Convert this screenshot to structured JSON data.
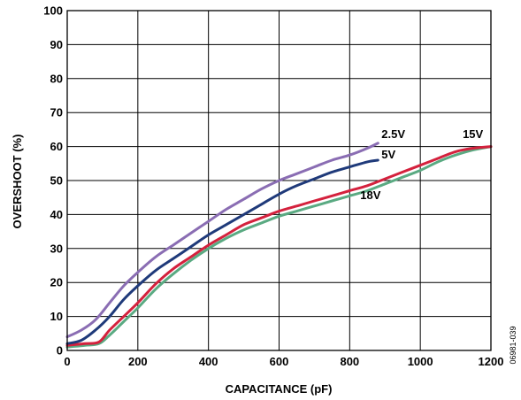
{
  "chart_data": {
    "type": "line",
    "xlabel": "CAPACITANCE (pF)",
    "ylabel": "OVERSHOOT (%)",
    "xlim": [
      0,
      1200
    ],
    "ylim": [
      0,
      100
    ],
    "x_ticks": [
      "0",
      "200",
      "400",
      "600",
      "800",
      "1000",
      "1200"
    ],
    "y_ticks": [
      "0",
      "10",
      "20",
      "30",
      "40",
      "50",
      "60",
      "70",
      "80",
      "90",
      "100"
    ],
    "grid": true,
    "figure_id": "06981-039",
    "series": [
      {
        "name": "2.5V",
        "color": "#8a6db3",
        "x": [
          0,
          40,
          80,
          120,
          160,
          200,
          250,
          300,
          350,
          400,
          450,
          500,
          550,
          600,
          650,
          700,
          750,
          800,
          850,
          880
        ],
        "y": [
          4,
          6,
          9,
          14,
          19,
          23,
          27.5,
          31,
          34.5,
          38,
          41.5,
          44.5,
          47.5,
          50,
          52,
          54,
          56,
          57.5,
          59.5,
          61
        ]
      },
      {
        "name": "5V",
        "color": "#1f3a7a",
        "x": [
          0,
          40,
          80,
          120,
          160,
          200,
          250,
          300,
          350,
          400,
          450,
          500,
          550,
          600,
          650,
          700,
          750,
          800,
          850,
          880
        ],
        "y": [
          2,
          3,
          6,
          10,
          15,
          19,
          23.5,
          27,
          30.5,
          34,
          37,
          40,
          43,
          46,
          48.5,
          50.5,
          52.5,
          54,
          55.5,
          56
        ]
      },
      {
        "name": "15V",
        "color": "#d4213d",
        "x": [
          0,
          50,
          90,
          120,
          160,
          200,
          250,
          300,
          350,
          400,
          450,
          500,
          550,
          600,
          650,
          700,
          750,
          800,
          850,
          900,
          950,
          1000,
          1050,
          1100,
          1150,
          1200
        ],
        "y": [
          1.5,
          2,
          2.5,
          6,
          10,
          14,
          19.5,
          24,
          27.5,
          31,
          34,
          37,
          39,
          41,
          42.5,
          44,
          45.5,
          47,
          48.5,
          50.5,
          52.5,
          54.5,
          56.5,
          58.5,
          59.5,
          60
        ]
      },
      {
        "name": "18V",
        "color": "#5aaa82",
        "x": [
          0,
          50,
          90,
          120,
          160,
          200,
          250,
          300,
          350,
          400,
          450,
          500,
          550,
          600,
          650,
          700,
          750,
          800,
          850,
          900,
          950,
          1000,
          1050,
          1100,
          1150,
          1200
        ],
        "y": [
          1,
          1.5,
          2,
          4.5,
          8.5,
          12.5,
          18,
          22.5,
          26.5,
          30,
          33,
          35.5,
          37.5,
          39.5,
          41,
          42.5,
          44,
          45.5,
          47,
          49,
          51,
          53,
          55.5,
          57.5,
          59,
          60
        ]
      }
    ]
  }
}
